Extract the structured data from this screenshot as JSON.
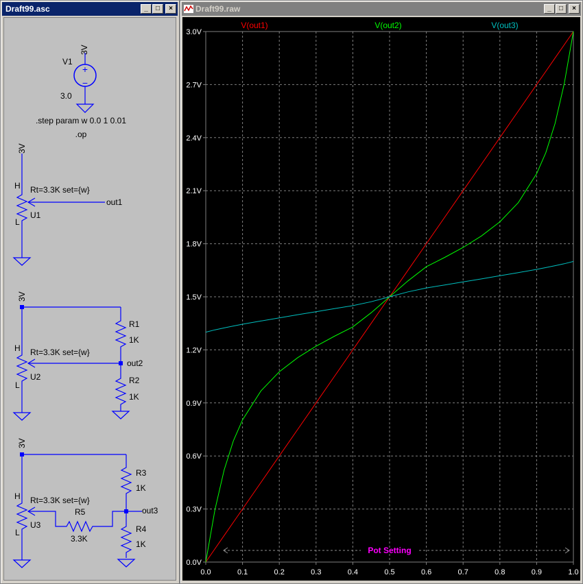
{
  "schematic_window": {
    "title": "Draft99.asc",
    "buttons": {
      "minimize": "_",
      "maximize": "□",
      "close": "×"
    },
    "source": {
      "name": "V1",
      "node": "3V",
      "value": "3.0"
    },
    "directives": {
      "step": ".step param w 0.0 1 0.01",
      "op": ".op"
    },
    "circuit1": {
      "supply": "3V",
      "pot_param": "Rt=3.3K set={w}",
      "pin_h": "H",
      "pin_l": "L",
      "pot_name": "U1",
      "out": "out1"
    },
    "circuit2": {
      "supply": "3V",
      "pot_param": "Rt=3.3K set={w}",
      "pin_h": "H",
      "pin_l": "L",
      "pot_name": "U2",
      "out": "out2",
      "r1_name": "R1",
      "r1_value": "1K",
      "r2_name": "R2",
      "r2_value": "1K"
    },
    "circuit3": {
      "supply": "3V",
      "pot_param": "Rt=3.3K set={w}",
      "pin_h": "H",
      "pin_l": "L",
      "pot_name": "U3",
      "out": "out3",
      "r3_name": "R3",
      "r3_value": "1K",
      "r4_name": "R4",
      "r4_value": "1K",
      "r5_name": "R5",
      "r5_value": "3.3K"
    }
  },
  "waveform_window": {
    "title": "Draft99.raw",
    "buttons": {
      "minimize": "_",
      "maximize": "□",
      "close": "×"
    }
  },
  "chart_data": {
    "type": "line",
    "xlabel": "Pot Setting",
    "ylabel": "",
    "xlim": [
      0,
      1
    ],
    "ylim": [
      0,
      3
    ],
    "x_ticks": [
      "0.0",
      "0.1",
      "0.2",
      "0.3",
      "0.4",
      "0.5",
      "0.6",
      "0.7",
      "0.8",
      "0.9",
      "1.0"
    ],
    "y_ticks": [
      "0.0V",
      "0.3V",
      "0.6V",
      "0.9V",
      "1.2V",
      "1.5V",
      "1.8V",
      "2.1V",
      "2.4V",
      "2.7V",
      "3.0V"
    ],
    "grid": true,
    "x": [
      0,
      0.025,
      0.05,
      0.075,
      0.1,
      0.15,
      0.2,
      0.25,
      0.3,
      0.35,
      0.4,
      0.45,
      0.5,
      0.55,
      0.6,
      0.65,
      0.7,
      0.75,
      0.8,
      0.85,
      0.9,
      0.925,
      0.95,
      0.975,
      1
    ],
    "series": [
      {
        "name": "V(out1)",
        "color": "#ff0000",
        "values": [
          0,
          0.075,
          0.15,
          0.225,
          0.3,
          0.45,
          0.6,
          0.75,
          0.9,
          1.05,
          1.2,
          1.35,
          1.5,
          1.65,
          1.8,
          1.95,
          2.1,
          2.25,
          2.4,
          2.55,
          2.7,
          2.775,
          2.85,
          2.925,
          3.0
        ]
      },
      {
        "name": "V(out2)",
        "color": "#00ff00",
        "values": [
          0,
          0.296,
          0.521,
          0.685,
          0.804,
          0.968,
          1.076,
          1.156,
          1.221,
          1.277,
          1.33,
          1.41,
          1.5,
          1.59,
          1.67,
          1.723,
          1.779,
          1.844,
          1.924,
          2.032,
          2.196,
          2.315,
          2.479,
          2.704,
          3.0
        ]
      },
      {
        "name": "V(out3)",
        "color": "#00c0c0",
        "values": [
          1.3,
          1.313,
          1.324,
          1.335,
          1.345,
          1.363,
          1.381,
          1.399,
          1.416,
          1.433,
          1.45,
          1.472,
          1.5,
          1.528,
          1.55,
          1.567,
          1.584,
          1.601,
          1.619,
          1.637,
          1.655,
          1.665,
          1.676,
          1.687,
          1.7
        ]
      }
    ]
  }
}
